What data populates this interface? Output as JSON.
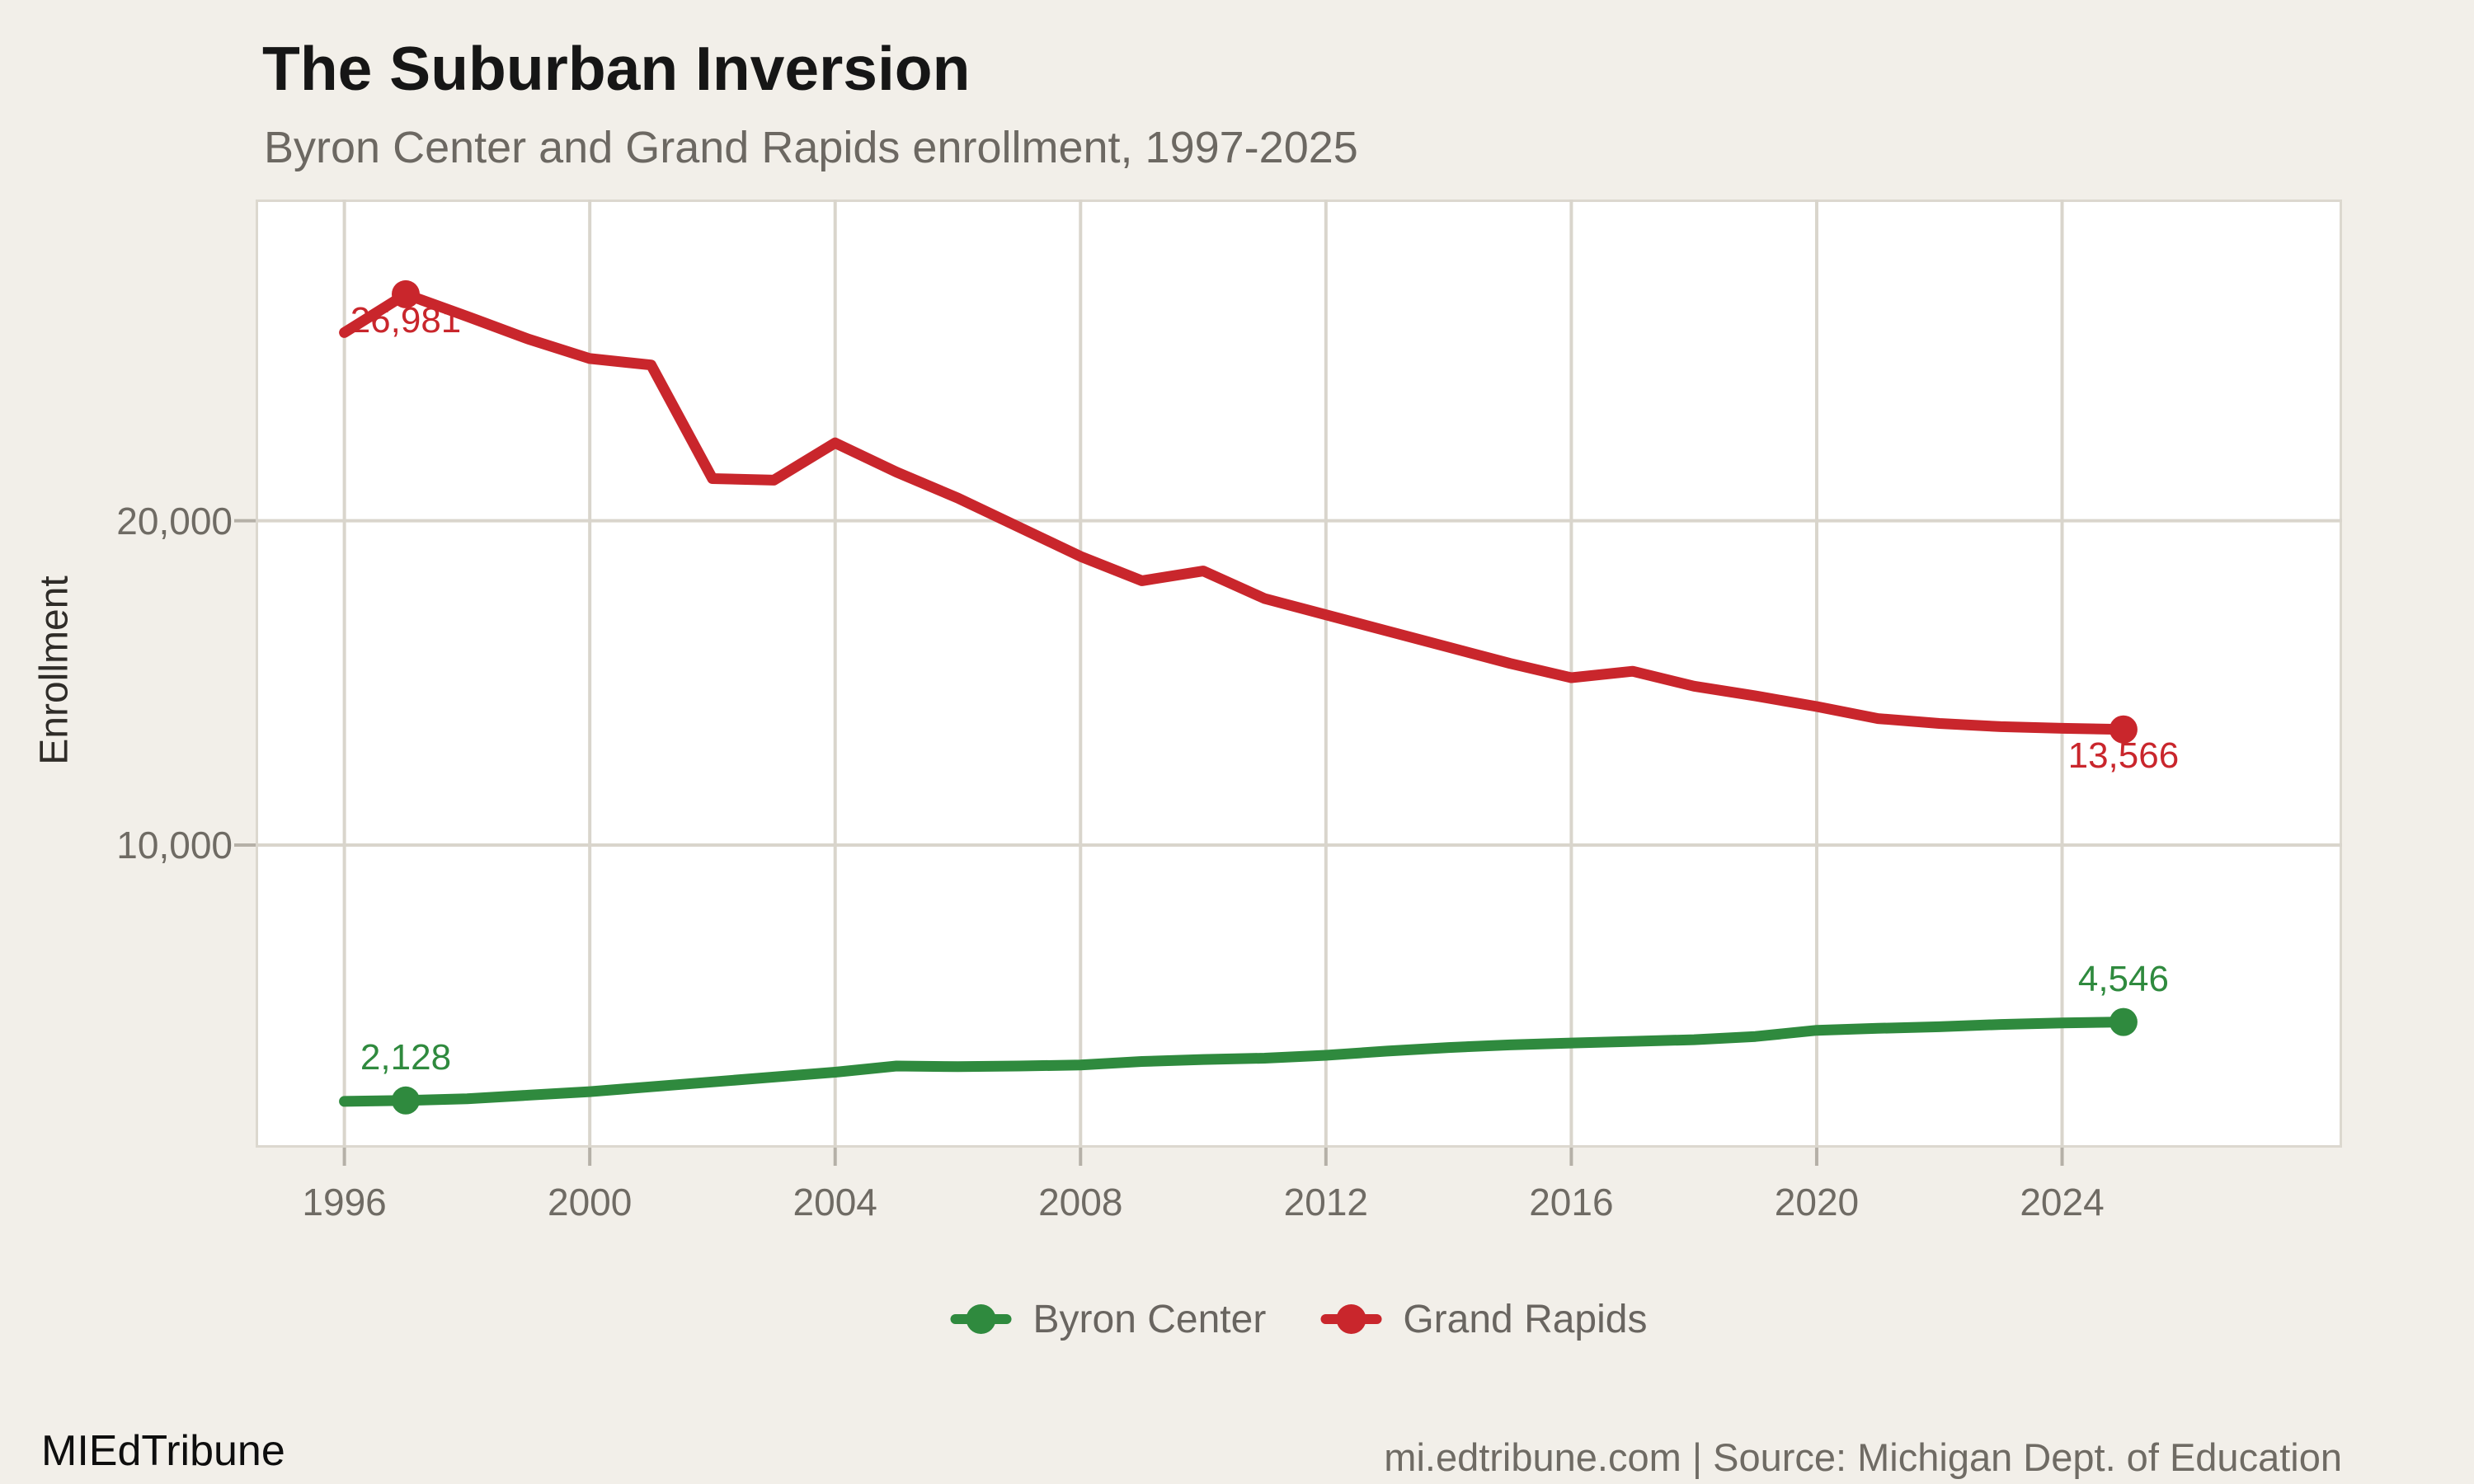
{
  "header": {
    "title": "The Suburban Inversion",
    "subtitle": "Byron Center and Grand Rapids enrollment, 1997-2025"
  },
  "chart_data": {
    "type": "line",
    "title": "The Suburban Inversion",
    "subtitle": "Byron Center and Grand Rapids enrollment, 1997-2025",
    "xlabel": "",
    "ylabel": "Enrollment",
    "x": [
      1996,
      1997,
      1998,
      1999,
      2000,
      2001,
      2002,
      2003,
      2004,
      2005,
      2006,
      2007,
      2008,
      2009,
      2010,
      2011,
      2012,
      2013,
      2014,
      2015,
      2016,
      2017,
      2018,
      2019,
      2020,
      2021,
      2022,
      2023,
      2024,
      2025
    ],
    "series": [
      {
        "name": "Byron Center",
        "color": "#2f8a3e",
        "values": [
          2100,
          2128,
          2180,
          2290,
          2400,
          2550,
          2700,
          2850,
          3000,
          3190,
          3170,
          3190,
          3220,
          3330,
          3390,
          3430,
          3520,
          3650,
          3760,
          3840,
          3900,
          3950,
          4000,
          4100,
          4290,
          4350,
          4400,
          4470,
          4520,
          4546
        ]
      },
      {
        "name": "Grand Rapids",
        "color": "#c9262c",
        "values": [
          25800,
          26981,
          26300,
          25600,
          25000,
          24800,
          21300,
          21250,
          22400,
          21500,
          20700,
          19800,
          18900,
          18150,
          18450,
          17600,
          17100,
          16600,
          16100,
          15600,
          15160,
          15360,
          14900,
          14600,
          14270,
          13900,
          13750,
          13650,
          13600,
          13566
        ]
      }
    ],
    "annotations": [
      {
        "series": 1,
        "year": 1997,
        "value": 26981,
        "label": "26,981",
        "placement": "below"
      },
      {
        "series": 1,
        "year": 2025,
        "value": 13566,
        "label": "13,566",
        "placement": "below"
      },
      {
        "series": 0,
        "year": 1997,
        "value": 2128,
        "label": "2,128",
        "placement": "above"
      },
      {
        "series": 0,
        "year": 2025,
        "value": 4546,
        "label": "4,546",
        "placement": "above"
      }
    ],
    "x_ticks": [
      1996,
      2000,
      2004,
      2008,
      2012,
      2016,
      2020,
      2024
    ],
    "y_ticks": [
      {
        "value": 20000,
        "label": "20,000"
      },
      {
        "value": 10000,
        "label": "10,000"
      }
    ],
    "xlim": [
      1994.6,
      2028.6
    ],
    "ylim": [
      700,
      29900
    ],
    "grid": "on",
    "legend_position": "bottom-center",
    "style": {
      "background": "#f2efe9",
      "panel_bg": "#ffffff",
      "grid_color": "#d9d5cc",
      "tick_color": "#b5b0a7",
      "axis_text_color": "#6f6b64"
    }
  },
  "legend": {
    "items": [
      {
        "label": "Byron Center",
        "color": "#2f8a3e"
      },
      {
        "label": "Grand Rapids",
        "color": "#c9262c"
      }
    ]
  },
  "footer": {
    "brand": "MIEdTribune",
    "attribution": "mi.edtribune.com | Source: Michigan Dept. of Education"
  }
}
